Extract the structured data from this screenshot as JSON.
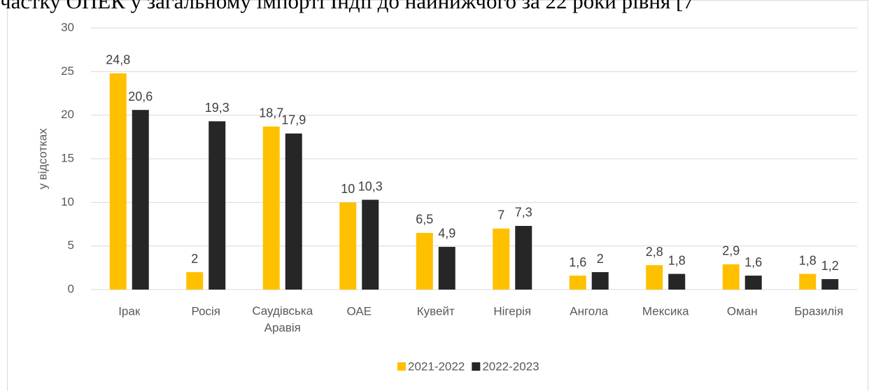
{
  "header_text": "частку ОПЕК у загальному імпорті Індії до найнижчого за 22 роки рівня [7",
  "chart_data": {
    "type": "bar",
    "y_label": "у відсотках",
    "categories": [
      "Ірак",
      "Росія",
      "Саудівська Аравія",
      "ОАЕ",
      "Кувейт",
      "Нігерія",
      "Ангола",
      "Мексика",
      "Оман",
      "Бразилія"
    ],
    "series": [
      {
        "name": "2021-2022",
        "color": "#FFC000",
        "values": [
          24.8,
          2,
          18.7,
          10,
          6.5,
          7,
          1.6,
          2.8,
          2.9,
          1.8
        ],
        "value_labels": [
          "24,8",
          "2",
          "18,7",
          "10",
          "6,5",
          "7",
          "1,6",
          "2,8",
          "2,9",
          "1,8"
        ]
      },
      {
        "name": "2022-2023",
        "color": "#262626",
        "values": [
          20.6,
          19.3,
          17.9,
          10.3,
          4.9,
          7.3,
          2,
          1.8,
          1.6,
          1.2
        ],
        "value_labels": [
          "20,6",
          "19,3",
          "17,9",
          "10,3",
          "4,9",
          "7,3",
          "2",
          "1,8",
          "1,6",
          "1,2"
        ]
      }
    ],
    "ylim": [
      0,
      30
    ],
    "yticks": [
      0,
      5,
      10,
      15,
      20,
      25,
      30
    ],
    "grid": true,
    "legend": "bottom"
  }
}
